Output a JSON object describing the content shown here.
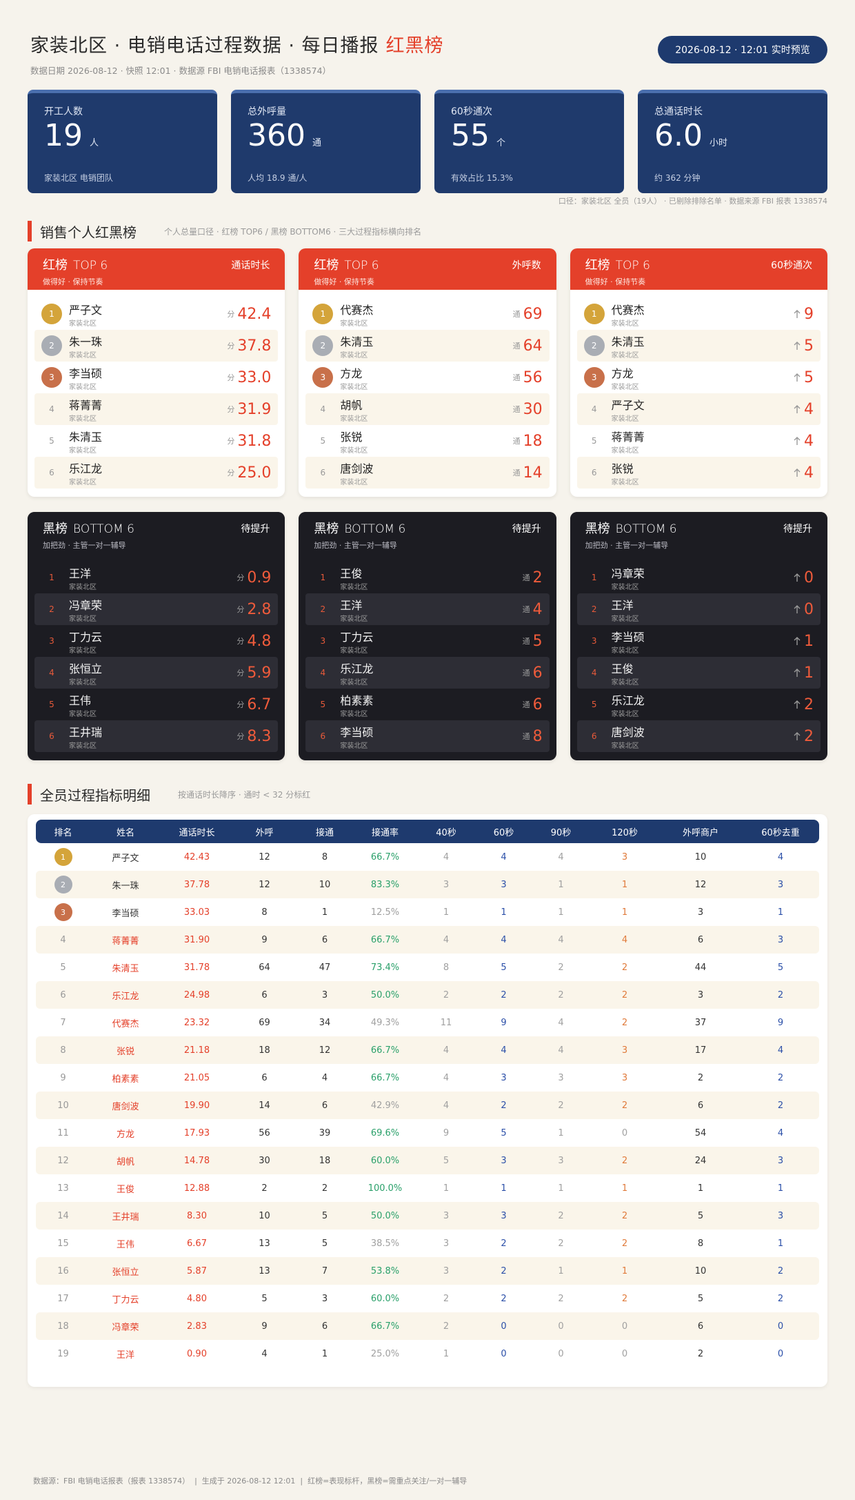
{
  "header": {
    "title": "家装北区 · 电销电话过程数据 · 每日播报",
    "highlight": "红黑榜",
    "meta": "数据日期 2026-08-12 · 快照 12:01 · 数据源 FBI 电销电话报表（1338574）",
    "badge": "2026-08-12 · 12:01 实时预览"
  },
  "kpis": [
    {
      "label": "开工人数",
      "value": 19,
      "unit": "人",
      "note": "家装北区 电销团队"
    },
    {
      "label": "总外呼量",
      "value": 360,
      "unit": "通",
      "note": "人均 18.9 通/人"
    },
    {
      "label": "60秒通次",
      "value": 55,
      "unit": "个",
      "note": "有效占比 15.3%"
    },
    {
      "label": "总通话时长",
      "value": "6.0",
      "unit": "小时",
      "note": "约 362 分钟"
    }
  ],
  "kpi_note": "口径：家装北区 全员（19人） · 已剔除排除名单 · 数据来源 FBI 报表 1338574",
  "boards_section": {
    "title": "销售个人红黑榜",
    "subtitle": "个人总量口径 · 红榜 TOP6 / 黑榜 BOTTOM6 · 三大过程指标横向排名"
  },
  "red_boards": [
    {
      "title": "红榜",
      "tag": "TOP 6",
      "subtitle": "做得好 · 保持节奏",
      "metric": "通话时长",
      "unit": "分",
      "rows": [
        {
          "rank": 1,
          "name": "严子文",
          "region": "家装北区",
          "value": "42.4"
        },
        {
          "rank": 2,
          "name": "朱一珠",
          "region": "家装北区",
          "value": "37.8"
        },
        {
          "rank": 3,
          "name": "李当硕",
          "region": "家装北区",
          "value": "33.0"
        },
        {
          "rank": 4,
          "name": "蒋菁菁",
          "region": "家装北区",
          "value": "31.9"
        },
        {
          "rank": 5,
          "name": "朱清玉",
          "region": "家装北区",
          "value": "31.8"
        },
        {
          "rank": 6,
          "name": "乐江龙",
          "region": "家装北区",
          "value": "25.0"
        }
      ]
    },
    {
      "title": "红榜",
      "tag": "TOP 6",
      "subtitle": "做得好 · 保持节奏",
      "metric": "外呼数",
      "unit": "通",
      "rows": [
        {
          "rank": 1,
          "name": "代赛杰",
          "region": "家装北区",
          "value": 69
        },
        {
          "rank": 2,
          "name": "朱清玉",
          "region": "家装北区",
          "value": 64
        },
        {
          "rank": 3,
          "name": "方龙",
          "region": "家装北区",
          "value": 56
        },
        {
          "rank": 4,
          "name": "胡帆",
          "region": "家装北区",
          "value": 30
        },
        {
          "rank": 5,
          "name": "张锐",
          "region": "家装北区",
          "value": 18
        },
        {
          "rank": 6,
          "name": "唐剑波",
          "region": "家装北区",
          "value": 14
        }
      ]
    },
    {
      "title": "红榜",
      "tag": "TOP 6",
      "subtitle": "做得好 · 保持节奏",
      "metric": "60秒通次",
      "rows": [
        {
          "rank": 1,
          "name": "代赛杰",
          "region": "家装北区",
          "value": 9
        },
        {
          "rank": 2,
          "name": "朱清玉",
          "region": "家装北区",
          "value": 5
        },
        {
          "rank": 3,
          "name": "方龙",
          "region": "家装北区",
          "value": 5
        },
        {
          "rank": 4,
          "name": "严子文",
          "region": "家装北区",
          "value": 4
        },
        {
          "rank": 5,
          "name": "蒋菁菁",
          "region": "家装北区",
          "value": 4
        },
        {
          "rank": 6,
          "name": "张锐",
          "region": "家装北区",
          "value": 4
        }
      ]
    }
  ],
  "black_boards": [
    {
      "title": "黑榜",
      "tag": "BOTTOM 6",
      "subtitle": "加把劲 · 主管一对一辅导",
      "metric": "待提升",
      "unit": "分",
      "rows": [
        {
          "rank": 1,
          "name": "王洋",
          "region": "家装北区",
          "value": 0.9
        },
        {
          "rank": 2,
          "name": "冯章荣",
          "region": "家装北区",
          "value": 2.8
        },
        {
          "rank": 3,
          "name": "丁力云",
          "region": "家装北区",
          "value": 4.8
        },
        {
          "rank": 4,
          "name": "张恒立",
          "region": "家装北区",
          "value": 5.9
        },
        {
          "rank": 5,
          "name": "王伟",
          "region": "家装北区",
          "value": 6.7
        },
        {
          "rank": 6,
          "name": "王井瑞",
          "region": "家装北区",
          "value": 8.3
        }
      ]
    },
    {
      "title": "黑榜",
      "tag": "BOTTOM 6",
      "subtitle": "加把劲 · 主管一对一辅导",
      "metric": "待提升",
      "unit": "通",
      "rows": [
        {
          "rank": 1,
          "name": "王俊",
          "region": "家装北区",
          "value": 2
        },
        {
          "rank": 2,
          "name": "王洋",
          "region": "家装北区",
          "value": 4
        },
        {
          "rank": 3,
          "name": "丁力云",
          "region": "家装北区",
          "value": 5
        },
        {
          "rank": 4,
          "name": "乐江龙",
          "region": "家装北区",
          "value": 6
        },
        {
          "rank": 5,
          "name": "柏素素",
          "region": "家装北区",
          "value": 6
        },
        {
          "rank": 6,
          "name": "李当硕",
          "region": "家装北区",
          "value": 8
        }
      ]
    },
    {
      "title": "黑榜",
      "tag": "BOTTOM 6",
      "subtitle": "加把劲 · 主管一对一辅导",
      "metric": "待提升",
      "rows": [
        {
          "rank": 1,
          "name": "冯章荣",
          "region": "家装北区",
          "value": 0
        },
        {
          "rank": 2,
          "name": "王洋",
          "region": "家装北区",
          "value": 0
        },
        {
          "rank": 3,
          "name": "李当硕",
          "region": "家装北区",
          "value": 1
        },
        {
          "rank": 4,
          "name": "王俊",
          "region": "家装北区",
          "value": 1
        },
        {
          "rank": 5,
          "name": "乐江龙",
          "region": "家装北区",
          "value": 2
        },
        {
          "rank": 6,
          "name": "唐剑波",
          "region": "家装北区",
          "value": 2
        }
      ]
    }
  ],
  "detail": {
    "title": "全员过程指标明细",
    "subtitle": "按通话时长降序 · 通时 < 32 分标红",
    "highlight_below": 32,
    "columns": [
      "排名",
      "姓名",
      "通话时长",
      "外呼",
      "接通",
      "接通率",
      "40秒",
      "60秒",
      "90秒",
      "120秒",
      "外呼商户",
      "60秒去重"
    ],
    "rows": [
      [
        1,
        "严子文",
        "42.43",
        "12",
        "8",
        "66.7%",
        "4",
        "4",
        "4",
        "3",
        "10",
        "4"
      ],
      [
        2,
        "朱一珠",
        "37.78",
        "12",
        "10",
        "83.3%",
        "3",
        "3",
        "1",
        "1",
        "12",
        "3"
      ],
      [
        3,
        "李当硕",
        "33.03",
        "8",
        "1",
        "12.5%",
        "1",
        "1",
        "1",
        "1",
        "3",
        "1"
      ],
      [
        4,
        "蒋菁菁",
        "31.90",
        "9",
        "6",
        "66.7%",
        "4",
        "4",
        "4",
        "4",
        "6",
        "3"
      ],
      [
        5,
        "朱清玉",
        "31.78",
        "64",
        "47",
        "73.4%",
        "8",
        "5",
        "2",
        "2",
        "44",
        "5"
      ],
      [
        6,
        "乐江龙",
        "24.98",
        "6",
        "3",
        "50.0%",
        "2",
        "2",
        "2",
        "2",
        "3",
        "2"
      ],
      [
        7,
        "代赛杰",
        "23.32",
        "69",
        "34",
        "49.3%",
        "11",
        "9",
        "4",
        "2",
        "37",
        "9"
      ],
      [
        8,
        "张锐",
        "21.18",
        "18",
        "12",
        "66.7%",
        "4",
        "4",
        "4",
        "3",
        "17",
        "4"
      ],
      [
        9,
        "柏素素",
        "21.05",
        "6",
        "4",
        "66.7%",
        "4",
        "3",
        "3",
        "3",
        "2",
        "2"
      ],
      [
        10,
        "唐剑波",
        "19.90",
        "14",
        "6",
        "42.9%",
        "4",
        "2",
        "2",
        "2",
        "6",
        "2"
      ],
      [
        11,
        "方龙",
        "17.93",
        "56",
        "39",
        "69.6%",
        "9",
        "5",
        "1",
        "0",
        "54",
        "4"
      ],
      [
        12,
        "胡帆",
        "14.78",
        "30",
        "18",
        "60.0%",
        "5",
        "3",
        "3",
        "2",
        "24",
        "3"
      ],
      [
        13,
        "王俊",
        "12.88",
        "2",
        "2",
        "100.0%",
        "1",
        "1",
        "1",
        "1",
        "1",
        "1"
      ],
      [
        14,
        "王井瑞",
        "8.30",
        "10",
        "5",
        "50.0%",
        "3",
        "3",
        "2",
        "2",
        "5",
        "3"
      ],
      [
        15,
        "王伟",
        "6.67",
        "13",
        "5",
        "38.5%",
        "3",
        "2",
        "2",
        "2",
        "8",
        "1"
      ],
      [
        16,
        "张恒立",
        "5.87",
        "13",
        "7",
        "53.8%",
        "3",
        "2",
        "1",
        "1",
        "10",
        "2"
      ],
      [
        17,
        "丁力云",
        "4.80",
        "5",
        "3",
        "60.0%",
        "2",
        "2",
        "2",
        "2",
        "5",
        "2"
      ],
      [
        18,
        "冯章荣",
        "2.83",
        "9",
        "6",
        "66.7%",
        "2",
        "0",
        "0",
        "0",
        "6",
        "0"
      ],
      [
        19,
        "王洋",
        "0.90",
        "4",
        "1",
        "25.0%",
        "1",
        "0",
        "0",
        "0",
        "2",
        "0"
      ]
    ]
  },
  "footer": "数据源：FBI 电销电话报表（报表 1338574）  |  生成于 2026-08-12 12:01  |  红榜=表现标杆，黑榜=需重点关注/一对一辅导"
}
